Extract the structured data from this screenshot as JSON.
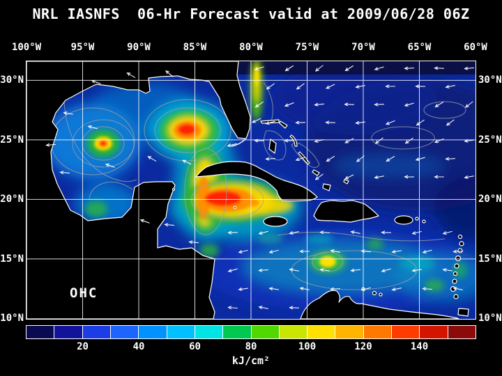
{
  "title": "NRL IASNFS  06-Hr Forecast valid at 2009/06/28 06Z",
  "map": {
    "label": "OHC",
    "lon_ticks": [
      "100°W",
      "95°W",
      "90°W",
      "85°W",
      "80°W",
      "75°W",
      "70°W",
      "65°W",
      "60°W"
    ],
    "lat_ticks_left": [
      "30°N",
      "25°N",
      "20°N",
      "15°N",
      "10°N"
    ],
    "lat_ticks_right": [
      "30°N",
      "25°N",
      "20°N",
      "15°N",
      "10°N"
    ]
  },
  "colorbar": {
    "unit": "kJ/cm²",
    "tick_labels": [
      "20",
      "40",
      "60",
      "80",
      "100",
      "120",
      "140"
    ],
    "range": [
      0,
      160
    ],
    "segment_colors": [
      "#0a0a50",
      "#12129b",
      "#1c3ce6",
      "#1e64ff",
      "#0092ff",
      "#00c0ff",
      "#00e4e4",
      "#00c850",
      "#50d800",
      "#c8e600",
      "#ffe000",
      "#ffb400",
      "#ff7800",
      "#ff3c00",
      "#d21400",
      "#8c0a0a"
    ]
  }
}
